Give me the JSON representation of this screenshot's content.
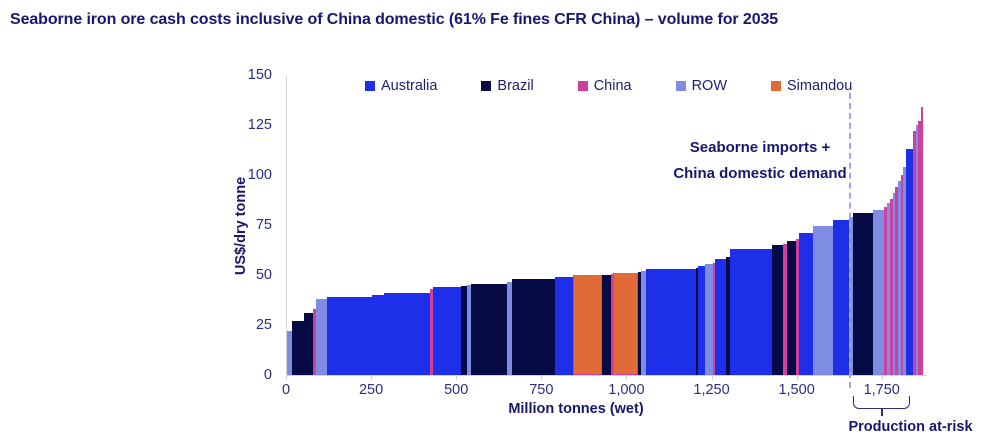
{
  "page_title": "Seaborne iron ore cash costs inclusive of China domestic (61% Fe fines CFR China) – volume for 2035",
  "chart_data": {
    "type": "bar",
    "subtype": "variable-width cost curve",
    "title": "Seaborne iron ore cash costs inclusive of China domestic (61% Fe fines CFR China) – volume for 2035",
    "xlabel": "Million tonnes (wet)",
    "ylabel": "US$/dry tonne",
    "xlim": [
      0,
      1880
    ],
    "ylim": [
      0,
      150
    ],
    "x_tick_values": [
      0,
      250,
      500,
      750,
      1000,
      1250,
      1500,
      1750
    ],
    "x_tick_labels": [
      "0",
      "250",
      "500",
      "750",
      "1,000",
      "1,250",
      "1,500",
      "1,750"
    ],
    "y_ticks": [
      0,
      25,
      50,
      75,
      100,
      125,
      150
    ],
    "grid": false,
    "legend_position": "top",
    "legend": [
      "Australia",
      "Brazil",
      "China",
      "ROW",
      "Simandou"
    ],
    "series_colors": {
      "Australia": "#1d2fe8",
      "Brazil": "#060a45",
      "China": "#cf3f9c",
      "ROW": "#7e8ce4",
      "Simandou": "#e06a38"
    },
    "axis_line_color": "#d5d5d5",
    "demand_line_color": "#9aa8ea",
    "annotations": {
      "demand_line_x": 1655,
      "demand_label_line1": "Seaborne imports +",
      "demand_label_line2": "China domestic demand",
      "at_risk_label": "Production at-risk",
      "at_risk_range": [
        1665,
        1833
      ]
    },
    "segment_format": [
      "series",
      "from_mt",
      "to_mt",
      "cost_usd_per_dry_tonne"
    ],
    "segments": [
      [
        "ROW",
        0,
        15,
        22
      ],
      [
        "Brazil",
        15,
        50,
        27
      ],
      [
        "Brazil",
        50,
        75,
        31
      ],
      [
        "China",
        75,
        85,
        33
      ],
      [
        "ROW",
        85,
        118,
        38
      ],
      [
        "Australia",
        118,
        250,
        39
      ],
      [
        "Australia",
        250,
        285,
        40
      ],
      [
        "Australia",
        285,
        420,
        41
      ],
      [
        "China",
        420,
        430,
        43
      ],
      [
        "Australia",
        430,
        512,
        44
      ],
      [
        "Brazil",
        512,
        530,
        44.5
      ],
      [
        "ROW",
        530,
        541,
        45
      ],
      [
        "Brazil",
        541,
        645,
        45.5
      ],
      [
        "ROW",
        645,
        662,
        46.5
      ],
      [
        "Brazil",
        662,
        786,
        48
      ],
      [
        "Australia",
        786,
        840,
        49
      ],
      [
        "Simandou",
        840,
        925,
        50
      ],
      [
        "Brazil",
        925,
        952,
        50
      ],
      [
        "China",
        952,
        957,
        50.5
      ],
      [
        "Simandou",
        957,
        1030,
        51
      ],
      [
        "Brazil",
        1030,
        1040,
        51.5
      ],
      [
        "ROW",
        1040,
        1056,
        52
      ],
      [
        "Australia",
        1056,
        1200,
        53
      ],
      [
        "Brazil",
        1200,
        1208,
        53.5
      ],
      [
        "Australia",
        1208,
        1228,
        54.5
      ],
      [
        "ROW",
        1228,
        1252,
        55.5
      ],
      [
        "China",
        1252,
        1257,
        56
      ],
      [
        "Australia",
        1257,
        1290,
        58
      ],
      [
        "Brazil",
        1290,
        1300,
        59
      ],
      [
        "Australia",
        1300,
        1425,
        63
      ],
      [
        "Brazil",
        1425,
        1458,
        65
      ],
      [
        "China",
        1458,
        1468,
        65.5
      ],
      [
        "Brazil",
        1468,
        1495,
        67
      ],
      [
        "China",
        1495,
        1505,
        68
      ],
      [
        "Australia",
        1505,
        1545,
        71
      ],
      [
        "ROW",
        1545,
        1605,
        74.5
      ],
      [
        "Australia",
        1605,
        1650,
        77.5
      ],
      [
        "ROW",
        1650,
        1662,
        79
      ],
      [
        "Brazil",
        1662,
        1720,
        81
      ],
      [
        "ROW",
        1720,
        1753,
        82.5
      ],
      [
        "China",
        1753,
        1762,
        84
      ],
      [
        "ROW",
        1762,
        1771,
        86
      ],
      [
        "China",
        1771,
        1779,
        88
      ],
      [
        "ROW",
        1779,
        1787,
        91
      ],
      [
        "China",
        1787,
        1795,
        94
      ],
      [
        "ROW",
        1795,
        1803,
        97
      ],
      [
        "China",
        1803,
        1810,
        100
      ],
      [
        "ROW",
        1810,
        1818,
        104
      ],
      [
        "Australia",
        1818,
        1838,
        113
      ],
      [
        "China",
        1838,
        1848,
        122
      ],
      [
        "ROW",
        1848,
        1855,
        125
      ],
      [
        "China",
        1855,
        1862,
        127
      ],
      [
        "China",
        1862,
        1868,
        134
      ]
    ]
  }
}
